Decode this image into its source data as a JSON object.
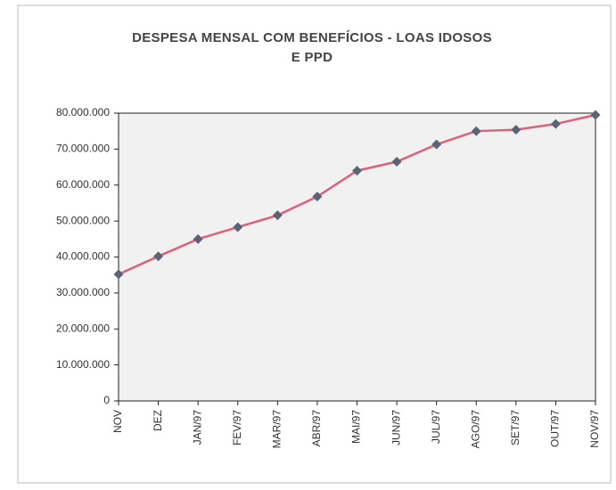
{
  "chart_data": {
    "type": "line",
    "title": "DESPESA MENSAL COM BENEFÍCIOS - LOAS IDOSOS\nE PPD",
    "categories": [
      "NOV",
      "DEZ",
      "JAN/97",
      "FEV/97",
      "MAR/97",
      "ABR/97",
      "MAI/97",
      "JUN/97",
      "JUL/97",
      "AGO/97",
      "SET/97",
      "OUT/97",
      "NOV/97"
    ],
    "values": [
      35200000,
      40200000,
      45000000,
      48300000,
      51600000,
      56800000,
      64000000,
      66500000,
      71300000,
      75000000,
      75400000,
      77000000,
      79500000
    ],
    "color": "#e0607a",
    "marker_color": "#5a6475",
    "ylim": [
      0,
      80000000
    ],
    "yticks": [
      0,
      {
        "value": 10000000,
        "label": "10.000.000"
      },
      {
        "value": 20000000,
        "label": "20.000.000"
      },
      {
        "value": 30000000,
        "label": "30.000.000"
      },
      {
        "value": 40000000,
        "label": "40.000.000"
      },
      {
        "value": 50000000,
        "label": "50.000.000"
      },
      {
        "value": 60000000,
        "label": "60.000.000"
      },
      {
        "value": 70000000,
        "label": "70.000.000"
      },
      {
        "value": 80000000,
        "label": "80.000.000"
      }
    ],
    "grid": false
  }
}
